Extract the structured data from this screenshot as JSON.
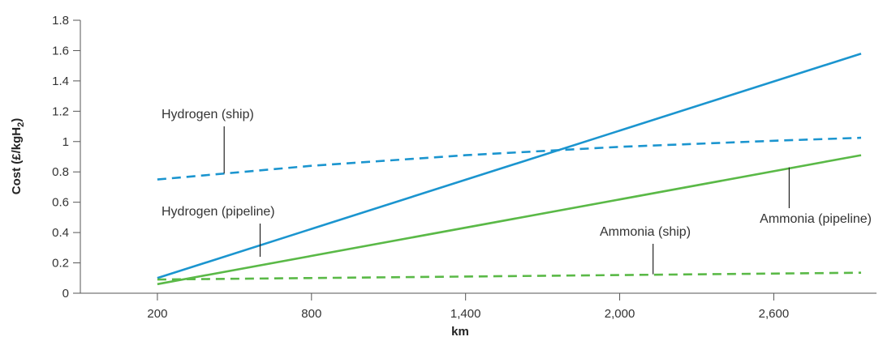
{
  "chart_data": {
    "type": "line",
    "xlabel": "km",
    "ylabel": "Cost (£/kgH",
    "ylabel_sub": "2",
    "ylabel_end": ")",
    "xlim": [
      -100,
      3000
    ],
    "ylim": [
      0,
      1.8
    ],
    "x_ticks": [
      200,
      800,
      1400,
      2000,
      2600
    ],
    "x_tick_labels": [
      "200",
      "800",
      "1,400",
      "2,000",
      "2,600"
    ],
    "y_ticks": [
      0,
      0.2,
      0.4,
      0.6,
      0.8,
      1.0,
      1.2,
      1.4,
      1.6,
      1.8
    ],
    "y_tick_labels": [
      "0",
      "0.2",
      "0.4",
      "0.6",
      "0.8",
      "1",
      "1.2",
      "1.4",
      "1.6",
      "1.8"
    ],
    "grid": false,
    "legend": "none (labels annotated inline)",
    "colors": {
      "hydrogen": "#1b95cf",
      "ammonia": "#5ab947",
      "text": "#333333",
      "axis": "#555555"
    },
    "series": [
      {
        "name": "Hydrogen (pipeline)",
        "style": "solid",
        "color": "#1b95cf",
        "x": [
          200,
          2940
        ],
        "y": [
          0.1,
          1.58
        ],
        "label_anchor": [
          600,
          0.24
        ]
      },
      {
        "name": "Hydrogen (ship)",
        "style": "dashed",
        "color": "#1b95cf",
        "x": [
          200,
          800,
          1400,
          2000,
          2600,
          2940
        ],
        "y": [
          0.75,
          0.84,
          0.91,
          0.965,
          1.005,
          1.025
        ],
        "label_anchor": [
          460,
          0.79
        ]
      },
      {
        "name": "Ammonia (pipeline)",
        "style": "solid",
        "color": "#5ab947",
        "x": [
          200,
          2940
        ],
        "y": [
          0.06,
          0.91
        ],
        "label_anchor": [
          2660,
          0.83
        ]
      },
      {
        "name": "Ammonia (ship)",
        "style": "dashed",
        "color": "#5ab947",
        "x": [
          200,
          2940
        ],
        "y": [
          0.09,
          0.135
        ],
        "label_anchor": [
          2130,
          0.125
        ]
      }
    ]
  }
}
